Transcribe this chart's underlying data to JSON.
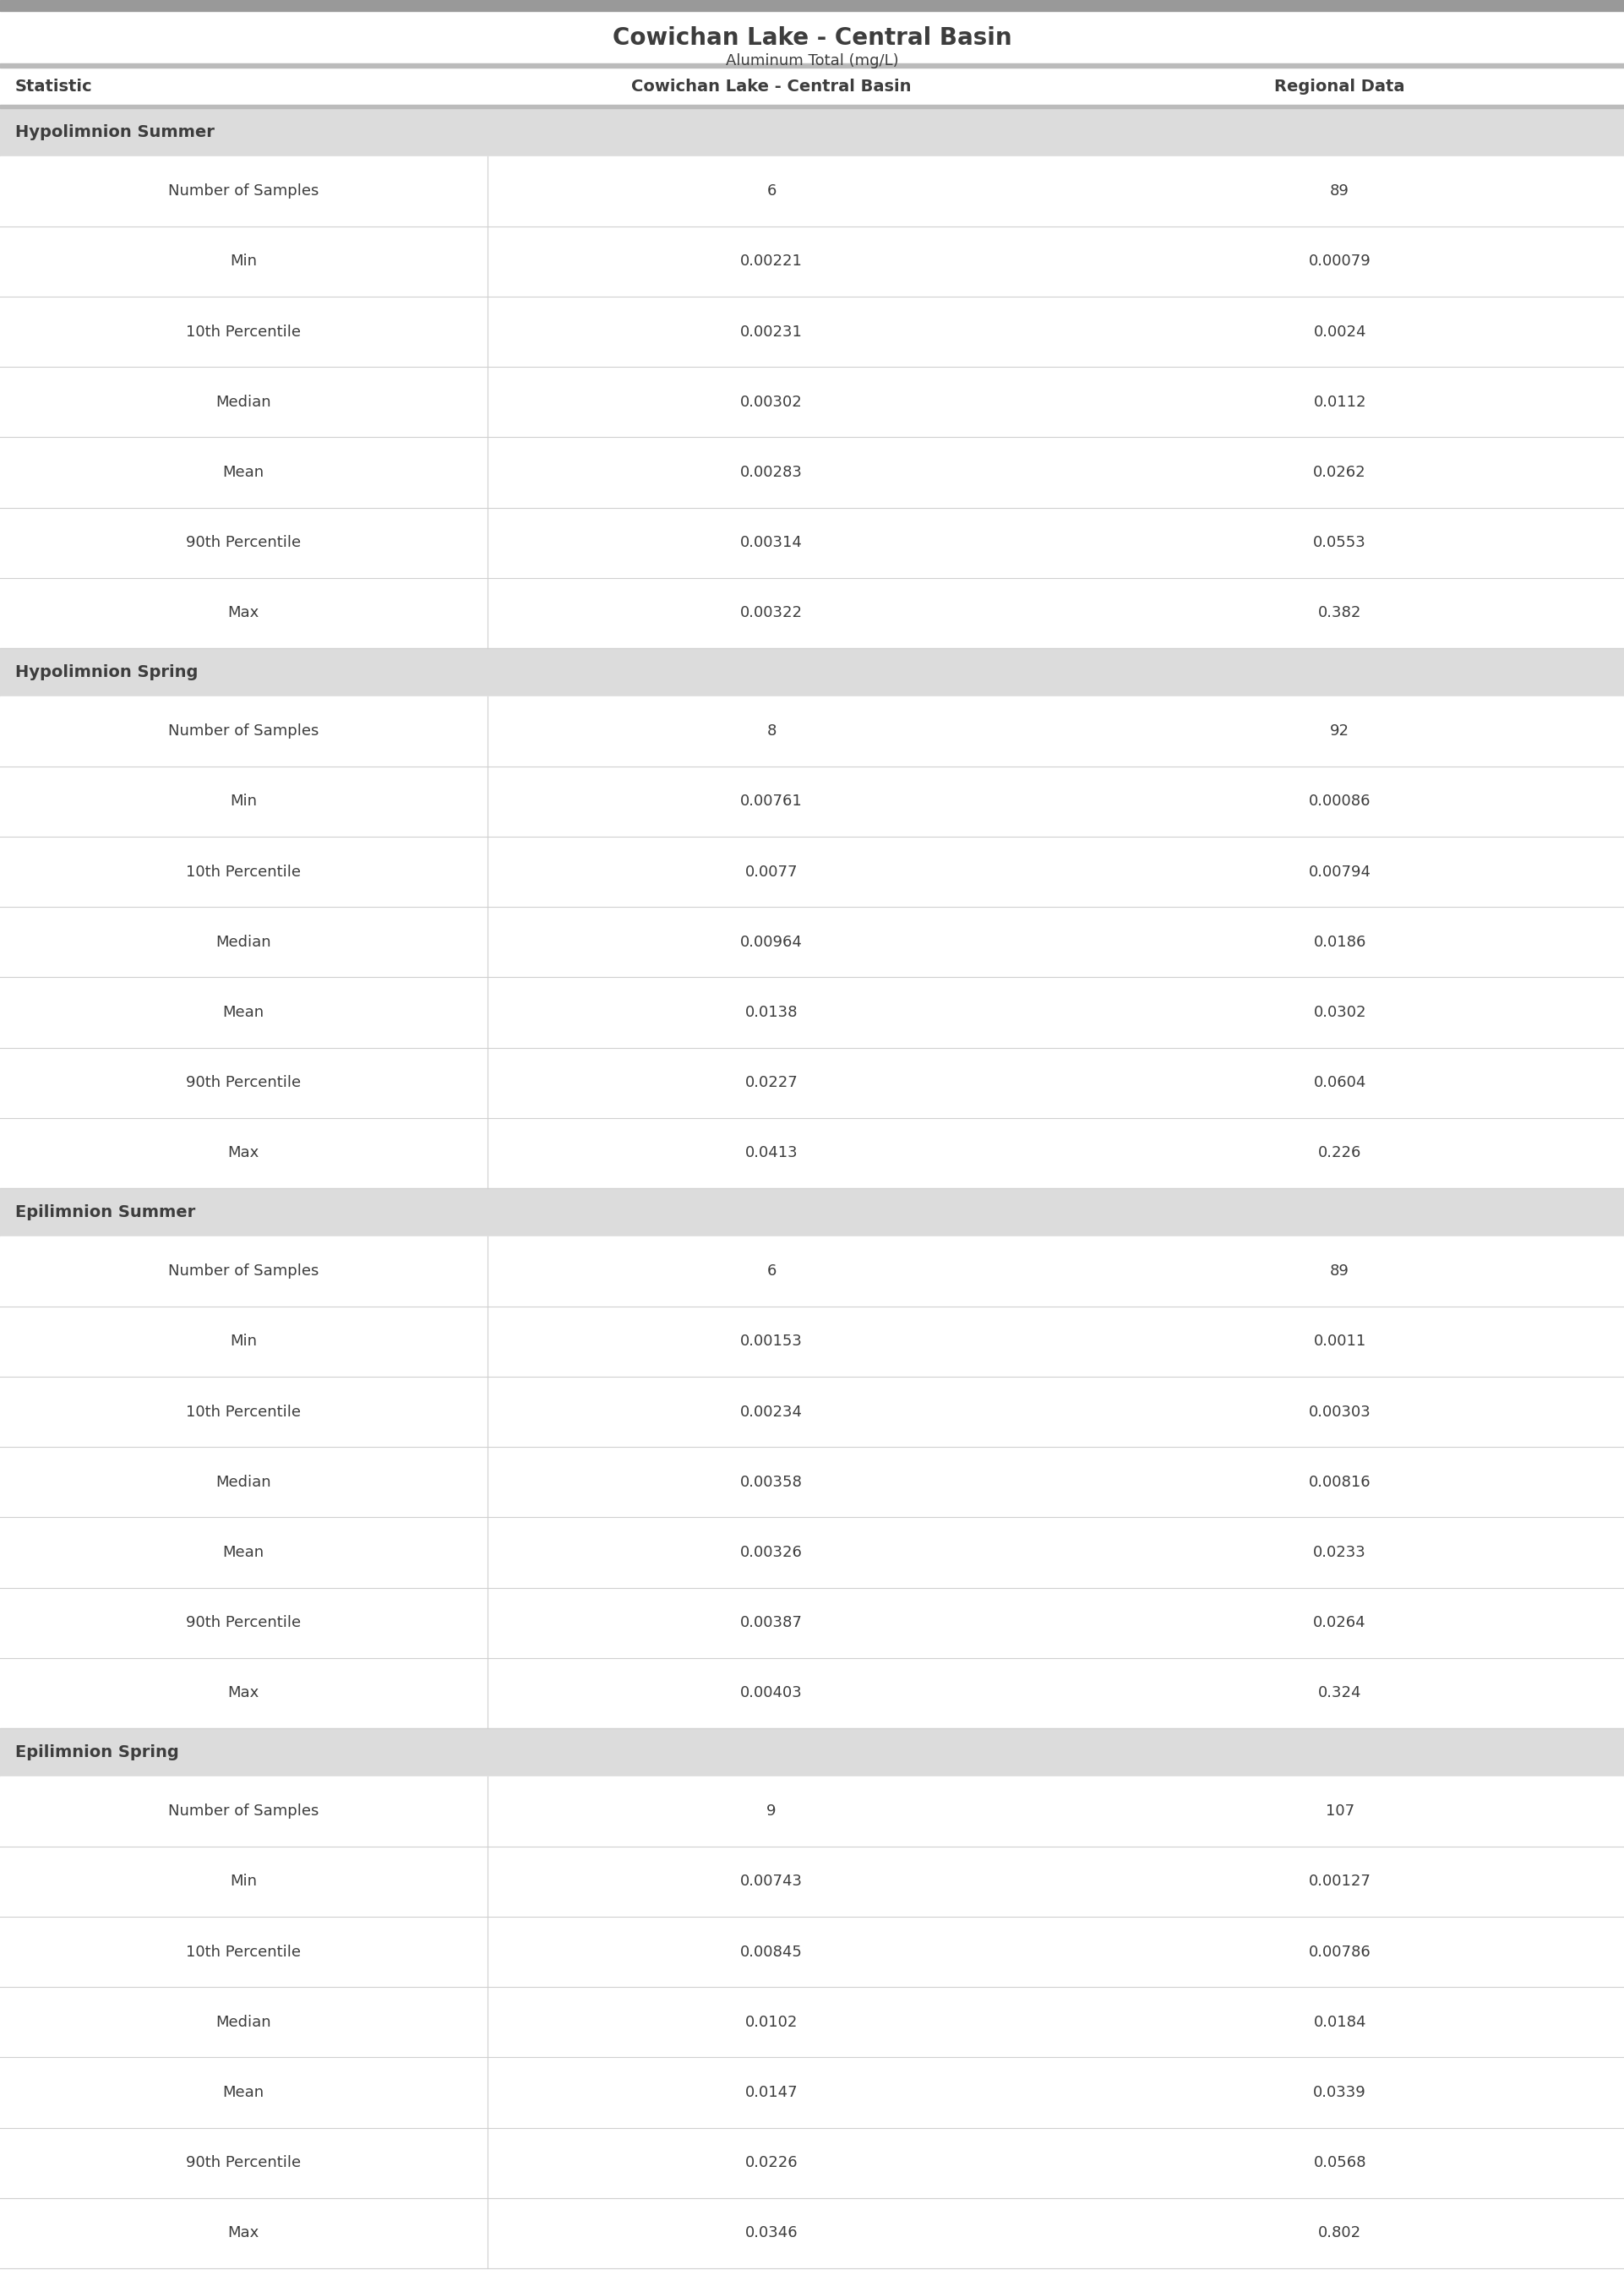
{
  "title": "Cowichan Lake - Central Basin",
  "subtitle": "Aluminum Total (mg/L)",
  "col_headers": [
    "Statistic",
    "Cowichan Lake - Central Basin",
    "Regional Data"
  ],
  "sections": [
    {
      "name": "Hypolimnion Summer",
      "rows": [
        [
          "Number of Samples",
          "6",
          "89"
        ],
        [
          "Min",
          "0.00221",
          "0.00079"
        ],
        [
          "10th Percentile",
          "0.00231",
          "0.0024"
        ],
        [
          "Median",
          "0.00302",
          "0.0112"
        ],
        [
          "Mean",
          "0.00283",
          "0.0262"
        ],
        [
          "90th Percentile",
          "0.00314",
          "0.0553"
        ],
        [
          "Max",
          "0.00322",
          "0.382"
        ]
      ]
    },
    {
      "name": "Hypolimnion Spring",
      "rows": [
        [
          "Number of Samples",
          "8",
          "92"
        ],
        [
          "Min",
          "0.00761",
          "0.00086"
        ],
        [
          "10th Percentile",
          "0.0077",
          "0.00794"
        ],
        [
          "Median",
          "0.00964",
          "0.0186"
        ],
        [
          "Mean",
          "0.0138",
          "0.0302"
        ],
        [
          "90th Percentile",
          "0.0227",
          "0.0604"
        ],
        [
          "Max",
          "0.0413",
          "0.226"
        ]
      ]
    },
    {
      "name": "Epilimnion Summer",
      "rows": [
        [
          "Number of Samples",
          "6",
          "89"
        ],
        [
          "Min",
          "0.00153",
          "0.0011"
        ],
        [
          "10th Percentile",
          "0.00234",
          "0.00303"
        ],
        [
          "Median",
          "0.00358",
          "0.00816"
        ],
        [
          "Mean",
          "0.00326",
          "0.0233"
        ],
        [
          "90th Percentile",
          "0.00387",
          "0.0264"
        ],
        [
          "Max",
          "0.00403",
          "0.324"
        ]
      ]
    },
    {
      "name": "Epilimnion Spring",
      "rows": [
        [
          "Number of Samples",
          "9",
          "107"
        ],
        [
          "Min",
          "0.00743",
          "0.00127"
        ],
        [
          "10th Percentile",
          "0.00845",
          "0.00786"
        ],
        [
          "Median",
          "0.0102",
          "0.0184"
        ],
        [
          "Mean",
          "0.0147",
          "0.0339"
        ],
        [
          "90th Percentile",
          "0.0226",
          "0.0568"
        ],
        [
          "Max",
          "0.0346",
          "0.802"
        ]
      ]
    }
  ],
  "title_color": "#3d3d3d",
  "subtitle_color": "#3d3d3d",
  "header_text_color": "#3d3d3d",
  "section_header_bg": "#dcdcdc",
  "section_header_text_color": "#3d3d3d",
  "data_text_color": "#3d3d3d",
  "col0_text_color": "#3d3d3d",
  "top_bar_color": "#999999",
  "divider_color": "#d0d0d0",
  "title_fontsize": 20,
  "subtitle_fontsize": 13,
  "header_fontsize": 14,
  "section_fontsize": 14,
  "data_fontsize": 13,
  "col_splits": [
    0.3,
    0.65
  ]
}
